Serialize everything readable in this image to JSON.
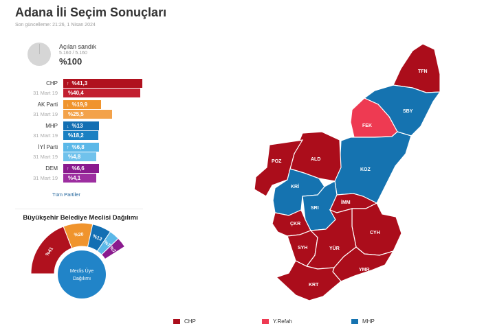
{
  "header": {
    "title": "Adana İli Seçim Sonuçları",
    "updated": "Son güncelleme: 21:26, 1 Nisan 2024"
  },
  "ballot": {
    "label": "Açılan sandık",
    "count": "5.160 / 5.160",
    "percent": "%100",
    "opened_fraction": 1.0
  },
  "prev_label": "31 Mart 19",
  "parties": [
    {
      "name": "CHP",
      "current": "%41,3",
      "previous": "%40,4",
      "trend": "↑",
      "current_value": 41.3,
      "previous_value": 40.4,
      "color": "#b0111e",
      "prev_color": "#c21f30"
    },
    {
      "name": "AK Parti",
      "current": "%19,9",
      "previous": "%25,5",
      "trend": "↓",
      "current_value": 19.9,
      "previous_value": 25.5,
      "color": "#f0942d",
      "prev_color": "#f3a24a"
    },
    {
      "name": "MHP",
      "current": "%13",
      "previous": "%18,2",
      "trend": "↓",
      "current_value": 13.0,
      "previous_value": 18.2,
      "color": "#136fb3",
      "prev_color": "#1a80c2"
    },
    {
      "name": "İYİ Parti",
      "current": "%6,8",
      "previous": "%4,8",
      "trend": "↑",
      "current_value": 6.8,
      "previous_value": 4.8,
      "color": "#5bb8e8",
      "prev_color": "#70c2ec"
    },
    {
      "name": "DEM",
      "current": "%6,6",
      "previous": "%4,1",
      "trend": "↑",
      "current_value": 6.6,
      "previous_value": 4.1,
      "color": "#8a1a8e",
      "prev_color": "#9d2ea0"
    }
  ],
  "all_parties_link": "Tüm Partiler",
  "council": {
    "title": "Büyükşehir Belediye Meclisi Dağılımı",
    "center_label_1": "Meclis Üye",
    "center_label_2": "Dağılımı",
    "segments": [
      {
        "label": "%41",
        "value": 41,
        "color": "#b0111e"
      },
      {
        "label": "%20",
        "value": 20,
        "color": "#f0942d"
      },
      {
        "label": "%13",
        "value": 13,
        "color": "#136fb3"
      },
      {
        "label": "%7",
        "value": 7,
        "color": "#5bb8e8"
      },
      {
        "label": "%7",
        "value": 7,
        "color": "#8a1a8e"
      }
    ]
  },
  "map": {
    "districts": [
      {
        "code": "TFN",
        "party": "CHP"
      },
      {
        "code": "SBY",
        "party": "MHP"
      },
      {
        "code": "FEK",
        "party": "Y.Refah"
      },
      {
        "code": "KOZ",
        "party": "MHP"
      },
      {
        "code": "ALD",
        "party": "CHP"
      },
      {
        "code": "POZ",
        "party": "CHP"
      },
      {
        "code": "KRİ",
        "party": "MHP"
      },
      {
        "code": "SRI",
        "party": "MHP"
      },
      {
        "code": "İMM",
        "party": "CHP"
      },
      {
        "code": "ÇKR",
        "party": "CHP"
      },
      {
        "code": "CYH",
        "party": "CHP"
      },
      {
        "code": "SYH",
        "party": "CHP"
      },
      {
        "code": "YÜR",
        "party": "CHP"
      },
      {
        "code": "YMR",
        "party": "CHP"
      },
      {
        "code": "KRT",
        "party": "CHP"
      }
    ],
    "colors": {
      "CHP": "#ab0d1b",
      "Y.Refah": "#ee3a52",
      "MHP": "#1573b0"
    }
  },
  "legend": [
    {
      "label": "CHP",
      "color": "#ab0d1b"
    },
    {
      "label": "Y.Refah",
      "color": "#ee3a52"
    },
    {
      "label": "MHP",
      "color": "#1573b0"
    }
  ]
}
